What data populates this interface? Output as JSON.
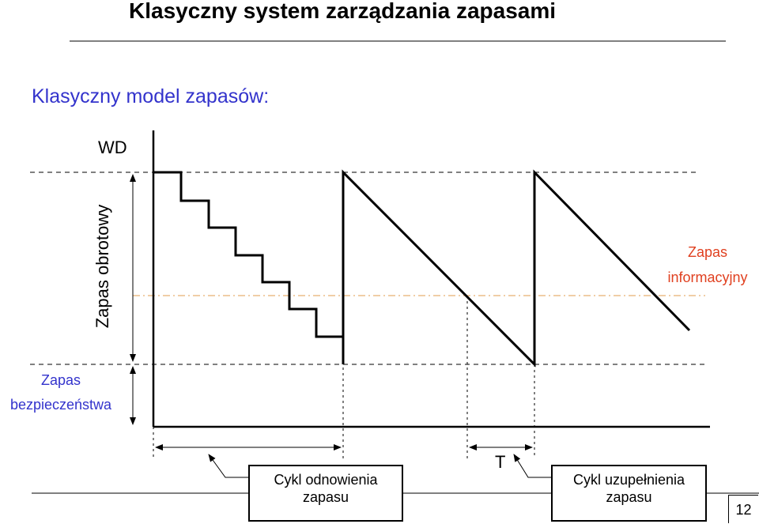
{
  "slide": {
    "title": "Klasyczny system zarządzania zapasami",
    "subtitle": "Klasyczny model zapasów:",
    "page_number": "12"
  },
  "diagram": {
    "labels": {
      "wd": "WD",
      "zapas_obrotowy": "Zapas obrotowy",
      "zapas_bezpieczenstwa": [
        "Zapas",
        "bezpieczeństwa"
      ],
      "zapas_informacyjny": [
        "Zapas",
        "informacyjny"
      ],
      "t": "T"
    },
    "callouts": {
      "cykl_odnowienia": [
        "Cykl odnowienia",
        "zapasu"
      ],
      "cykl_uzupelnienia": [
        "Cykl uzupełnienia",
        "zapasu"
      ]
    }
  },
  "colors": {
    "title": "#000000",
    "subtitle": "#3333cc",
    "safety_label": "#3333cc",
    "info_label": "#e04020",
    "info_line": "#e8b070"
  }
}
